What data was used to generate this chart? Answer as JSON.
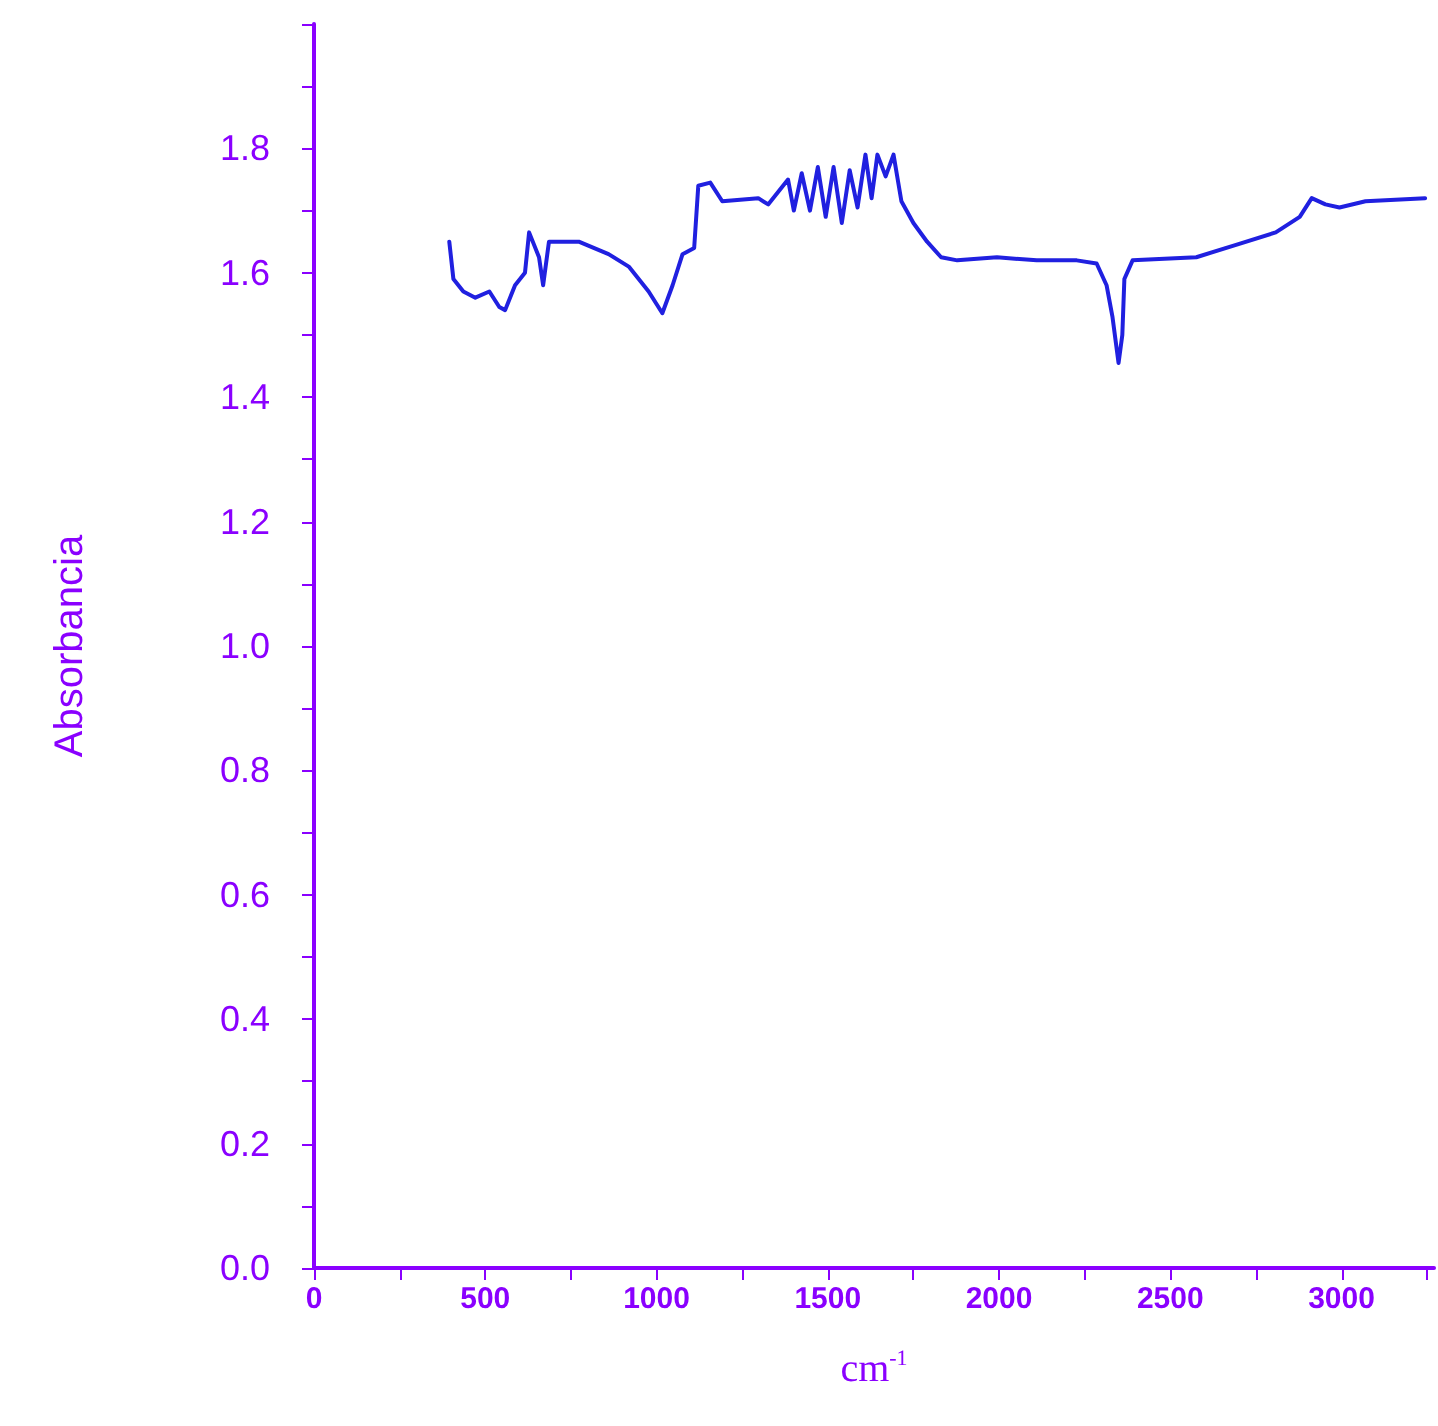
{
  "chart_data": {
    "type": "line",
    "xlabel": "cm$^{-1}$",
    "ylabel": "Absorbancia",
    "xlim": [
      0,
      3270
    ],
    "xticks": [
      0,
      {
        "value": 250,
        "label": null
      },
      500,
      {
        "value": 750,
        "label": null
      },
      1000,
      {
        "value": 1250,
        "label": null
      },
      1500,
      {
        "value": 1750,
        "label": null
      },
      2000,
      {
        "value": 2250,
        "label": null
      },
      2500,
      {
        "value": 2750,
        "label": null
      },
      3000,
      {
        "value": 3250,
        "label": null
      }
    ],
    "ylim": [
      0,
      2.0
    ],
    "yticks": [
      "0.0",
      {
        "value": 0.1,
        "label": null
      },
      {
        "value": 0.2,
        "label": "0.2"
      },
      {
        "value": 0.3,
        "label": null
      },
      {
        "value": 0.4,
        "label": "0.4"
      },
      {
        "value": 0.5,
        "label": null
      },
      {
        "value": 0.6,
        "label": "0.6"
      },
      {
        "value": 0.7,
        "label": null
      },
      {
        "value": 0.8,
        "label": "0.8"
      },
      {
        "value": 0.9,
        "label": null
      },
      {
        "value": 1.0,
        "label": "1.0"
      },
      {
        "value": 1.1,
        "label": null
      },
      {
        "value": 1.2,
        "label": "1.2"
      },
      {
        "value": 1.3,
        "label": null
      },
      {
        "value": 1.4,
        "label": "1.4"
      },
      {
        "value": 1.5,
        "label": null
      },
      {
        "value": 1.6,
        "label": "1.6"
      },
      {
        "value": 1.7,
        "label": null
      },
      {
        "value": 1.8,
        "label": "1.8"
      },
      {
        "value": 1.9,
        "label": null
      },
      {
        "value": 2.0,
        "label": null
      }
    ],
    "grid": false,
    "line_style": "solid",
    "series": [
      {
        "color": "#2020e0",
        "x": [
          395,
          407,
          436,
          471,
          512,
          541,
          558,
          587,
          616,
          628,
          657,
          669,
          686,
          773,
          860,
          919,
          977,
          1017,
          1047,
          1076,
          1110,
          1122,
          1157,
          1192,
          1297,
          1326,
          1384,
          1401,
          1424,
          1448,
          1471,
          1494,
          1517,
          1541,
          1564,
          1587,
          1610,
          1628,
          1645,
          1669,
          1692,
          1715,
          1750,
          1790,
          1831,
          1878,
          1994,
          2110,
          2227,
          2285,
          2314,
          2331,
          2349,
          2360,
          2366,
          2390,
          2576,
          2692,
          2808,
          2878,
          2913,
          2953,
          2994,
          3070,
          3244
        ],
        "values": [
          1.65,
          1.59,
          1.57,
          1.56,
          1.57,
          1.545,
          1.54,
          1.58,
          1.6,
          1.665,
          1.625,
          1.58,
          1.65,
          1.65,
          1.63,
          1.61,
          1.57,
          1.535,
          1.58,
          1.63,
          1.64,
          1.74,
          1.745,
          1.715,
          1.72,
          1.71,
          1.75,
          1.7,
          1.76,
          1.7,
          1.77,
          1.69,
          1.77,
          1.68,
          1.765,
          1.705,
          1.79,
          1.72,
          1.79,
          1.755,
          1.79,
          1.715,
          1.68,
          1.65,
          1.625,
          1.62,
          1.625,
          1.62,
          1.62,
          1.615,
          1.58,
          1.53,
          1.455,
          1.5,
          1.59,
          1.62,
          1.625,
          1.645,
          1.665,
          1.69,
          1.72,
          1.71,
          1.705,
          1.715,
          1.72
        ]
      }
    ]
  }
}
